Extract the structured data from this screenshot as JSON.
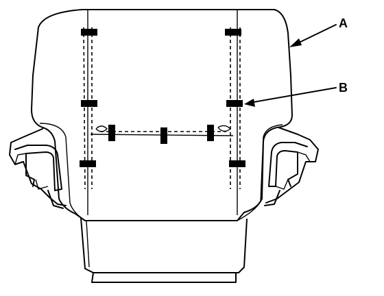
{
  "diagram": {
    "callouts": [
      {
        "id": "A",
        "label": "A"
      },
      {
        "id": "B",
        "label": "B"
      }
    ],
    "colors": {
      "line": "#000000",
      "background": "#ffffff"
    }
  }
}
